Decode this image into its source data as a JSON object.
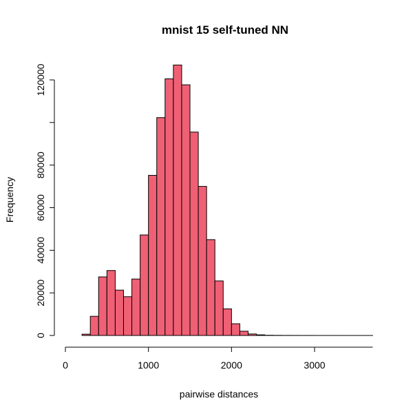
{
  "chart_data": {
    "type": "bar",
    "title": "mnist 15 self-tuned NN",
    "xlabel": "pairwise distances",
    "ylabel": "Frequency",
    "bin_width": 100,
    "bins": [
      {
        "start": 200,
        "end": 300,
        "value": 600
      },
      {
        "start": 300,
        "end": 400,
        "value": 9000
      },
      {
        "start": 400,
        "end": 500,
        "value": 27500
      },
      {
        "start": 500,
        "end": 600,
        "value": 30500
      },
      {
        "start": 600,
        "end": 700,
        "value": 21300
      },
      {
        "start": 700,
        "end": 800,
        "value": 18200
      },
      {
        "start": 800,
        "end": 900,
        "value": 26500
      },
      {
        "start": 900,
        "end": 1000,
        "value": 47200
      },
      {
        "start": 1000,
        "end": 1100,
        "value": 75200
      },
      {
        "start": 1100,
        "end": 1200,
        "value": 102300
      },
      {
        "start": 1200,
        "end": 1300,
        "value": 120500
      },
      {
        "start": 1300,
        "end": 1400,
        "value": 127000
      },
      {
        "start": 1400,
        "end": 1500,
        "value": 117700
      },
      {
        "start": 1500,
        "end": 1600,
        "value": 95500
      },
      {
        "start": 1600,
        "end": 1700,
        "value": 70000
      },
      {
        "start": 1700,
        "end": 1800,
        "value": 45000
      },
      {
        "start": 1800,
        "end": 1900,
        "value": 25600
      },
      {
        "start": 1900,
        "end": 2000,
        "value": 12500
      },
      {
        "start": 2000,
        "end": 2100,
        "value": 5500
      },
      {
        "start": 2100,
        "end": 2200,
        "value": 2000
      },
      {
        "start": 2200,
        "end": 2300,
        "value": 700
      },
      {
        "start": 2300,
        "end": 2400,
        "value": 300
      },
      {
        "start": 2400,
        "end": 2500,
        "value": 100
      },
      {
        "start": 2500,
        "end": 2600,
        "value": 60
      },
      {
        "start": 2600,
        "end": 2700,
        "value": 40
      },
      {
        "start": 2700,
        "end": 2800,
        "value": 30
      },
      {
        "start": 2800,
        "end": 2900,
        "value": 20
      },
      {
        "start": 2900,
        "end": 3000,
        "value": 15
      },
      {
        "start": 3000,
        "end": 3100,
        "value": 10
      },
      {
        "start": 3100,
        "end": 3200,
        "value": 8
      },
      {
        "start": 3200,
        "end": 3300,
        "value": 6
      },
      {
        "start": 3300,
        "end": 3400,
        "value": 5
      },
      {
        "start": 3400,
        "end": 3500,
        "value": 4
      },
      {
        "start": 3500,
        "end": 3600,
        "value": 3
      },
      {
        "start": 3600,
        "end": 3700,
        "value": 2
      }
    ],
    "xlim": [
      0,
      3700
    ],
    "ylim": [
      0,
      127000
    ],
    "x_ticks": [
      0,
      1000,
      2000,
      3000
    ],
    "x_tick_labels": [
      "0",
      "1000",
      "2000",
      "3000"
    ],
    "y_ticks": [
      0,
      20000,
      40000,
      60000,
      80000,
      100000,
      120000
    ],
    "y_tick_labels": [
      "0",
      "20000",
      "40000",
      "60000",
      "80000",
      "",
      "120000"
    ],
    "bar_color": "#EF6075",
    "grid": false
  }
}
